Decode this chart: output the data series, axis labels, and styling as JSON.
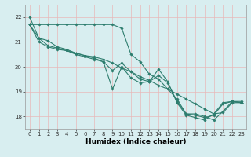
{
  "title": "",
  "xlabel": "Humidex (Indice chaleur)",
  "ylabel": "",
  "xlim": [
    -0.5,
    23.5
  ],
  "ylim": [
    17.5,
    22.5
  ],
  "yticks": [
    18,
    19,
    20,
    21,
    22
  ],
  "xticks": [
    0,
    1,
    2,
    3,
    4,
    5,
    6,
    7,
    8,
    9,
    10,
    11,
    12,
    13,
    14,
    15,
    16,
    17,
    18,
    19,
    20,
    21,
    22,
    23
  ],
  "bg_color": "#d8eef0",
  "grid_color": "#e8b8b8",
  "line_color": "#2d7d6e",
  "lines": [
    [
      22.0,
      21.15,
      21.05,
      20.8,
      20.7,
      20.55,
      20.45,
      20.35,
      20.2,
      19.1,
      20.0,
      19.55,
      19.35,
      19.4,
      19.9,
      19.4,
      18.55,
      18.05,
      17.95,
      17.85,
      18.1,
      18.55,
      18.6,
      18.55
    ],
    [
      21.7,
      21.7,
      21.7,
      21.7,
      21.7,
      21.7,
      21.7,
      21.7,
      21.7,
      21.7,
      21.55,
      20.5,
      20.2,
      19.7,
      19.5,
      19.1,
      18.7,
      18.1,
      18.1,
      18.0,
      17.85,
      18.2,
      18.6,
      18.6
    ],
    [
      21.7,
      21.15,
      20.85,
      20.75,
      20.65,
      20.5,
      20.4,
      20.3,
      20.2,
      19.85,
      20.15,
      19.8,
      19.5,
      19.4,
      19.65,
      19.35,
      18.6,
      18.1,
      18.05,
      17.95,
      18.05,
      18.5,
      18.6,
      18.55
    ],
    [
      21.7,
      21.0,
      20.8,
      20.7,
      20.65,
      20.55,
      20.45,
      20.4,
      20.3,
      20.15,
      19.95,
      19.8,
      19.6,
      19.45,
      19.25,
      19.1,
      18.9,
      18.7,
      18.5,
      18.3,
      18.1,
      18.15,
      18.55,
      18.55
    ]
  ]
}
